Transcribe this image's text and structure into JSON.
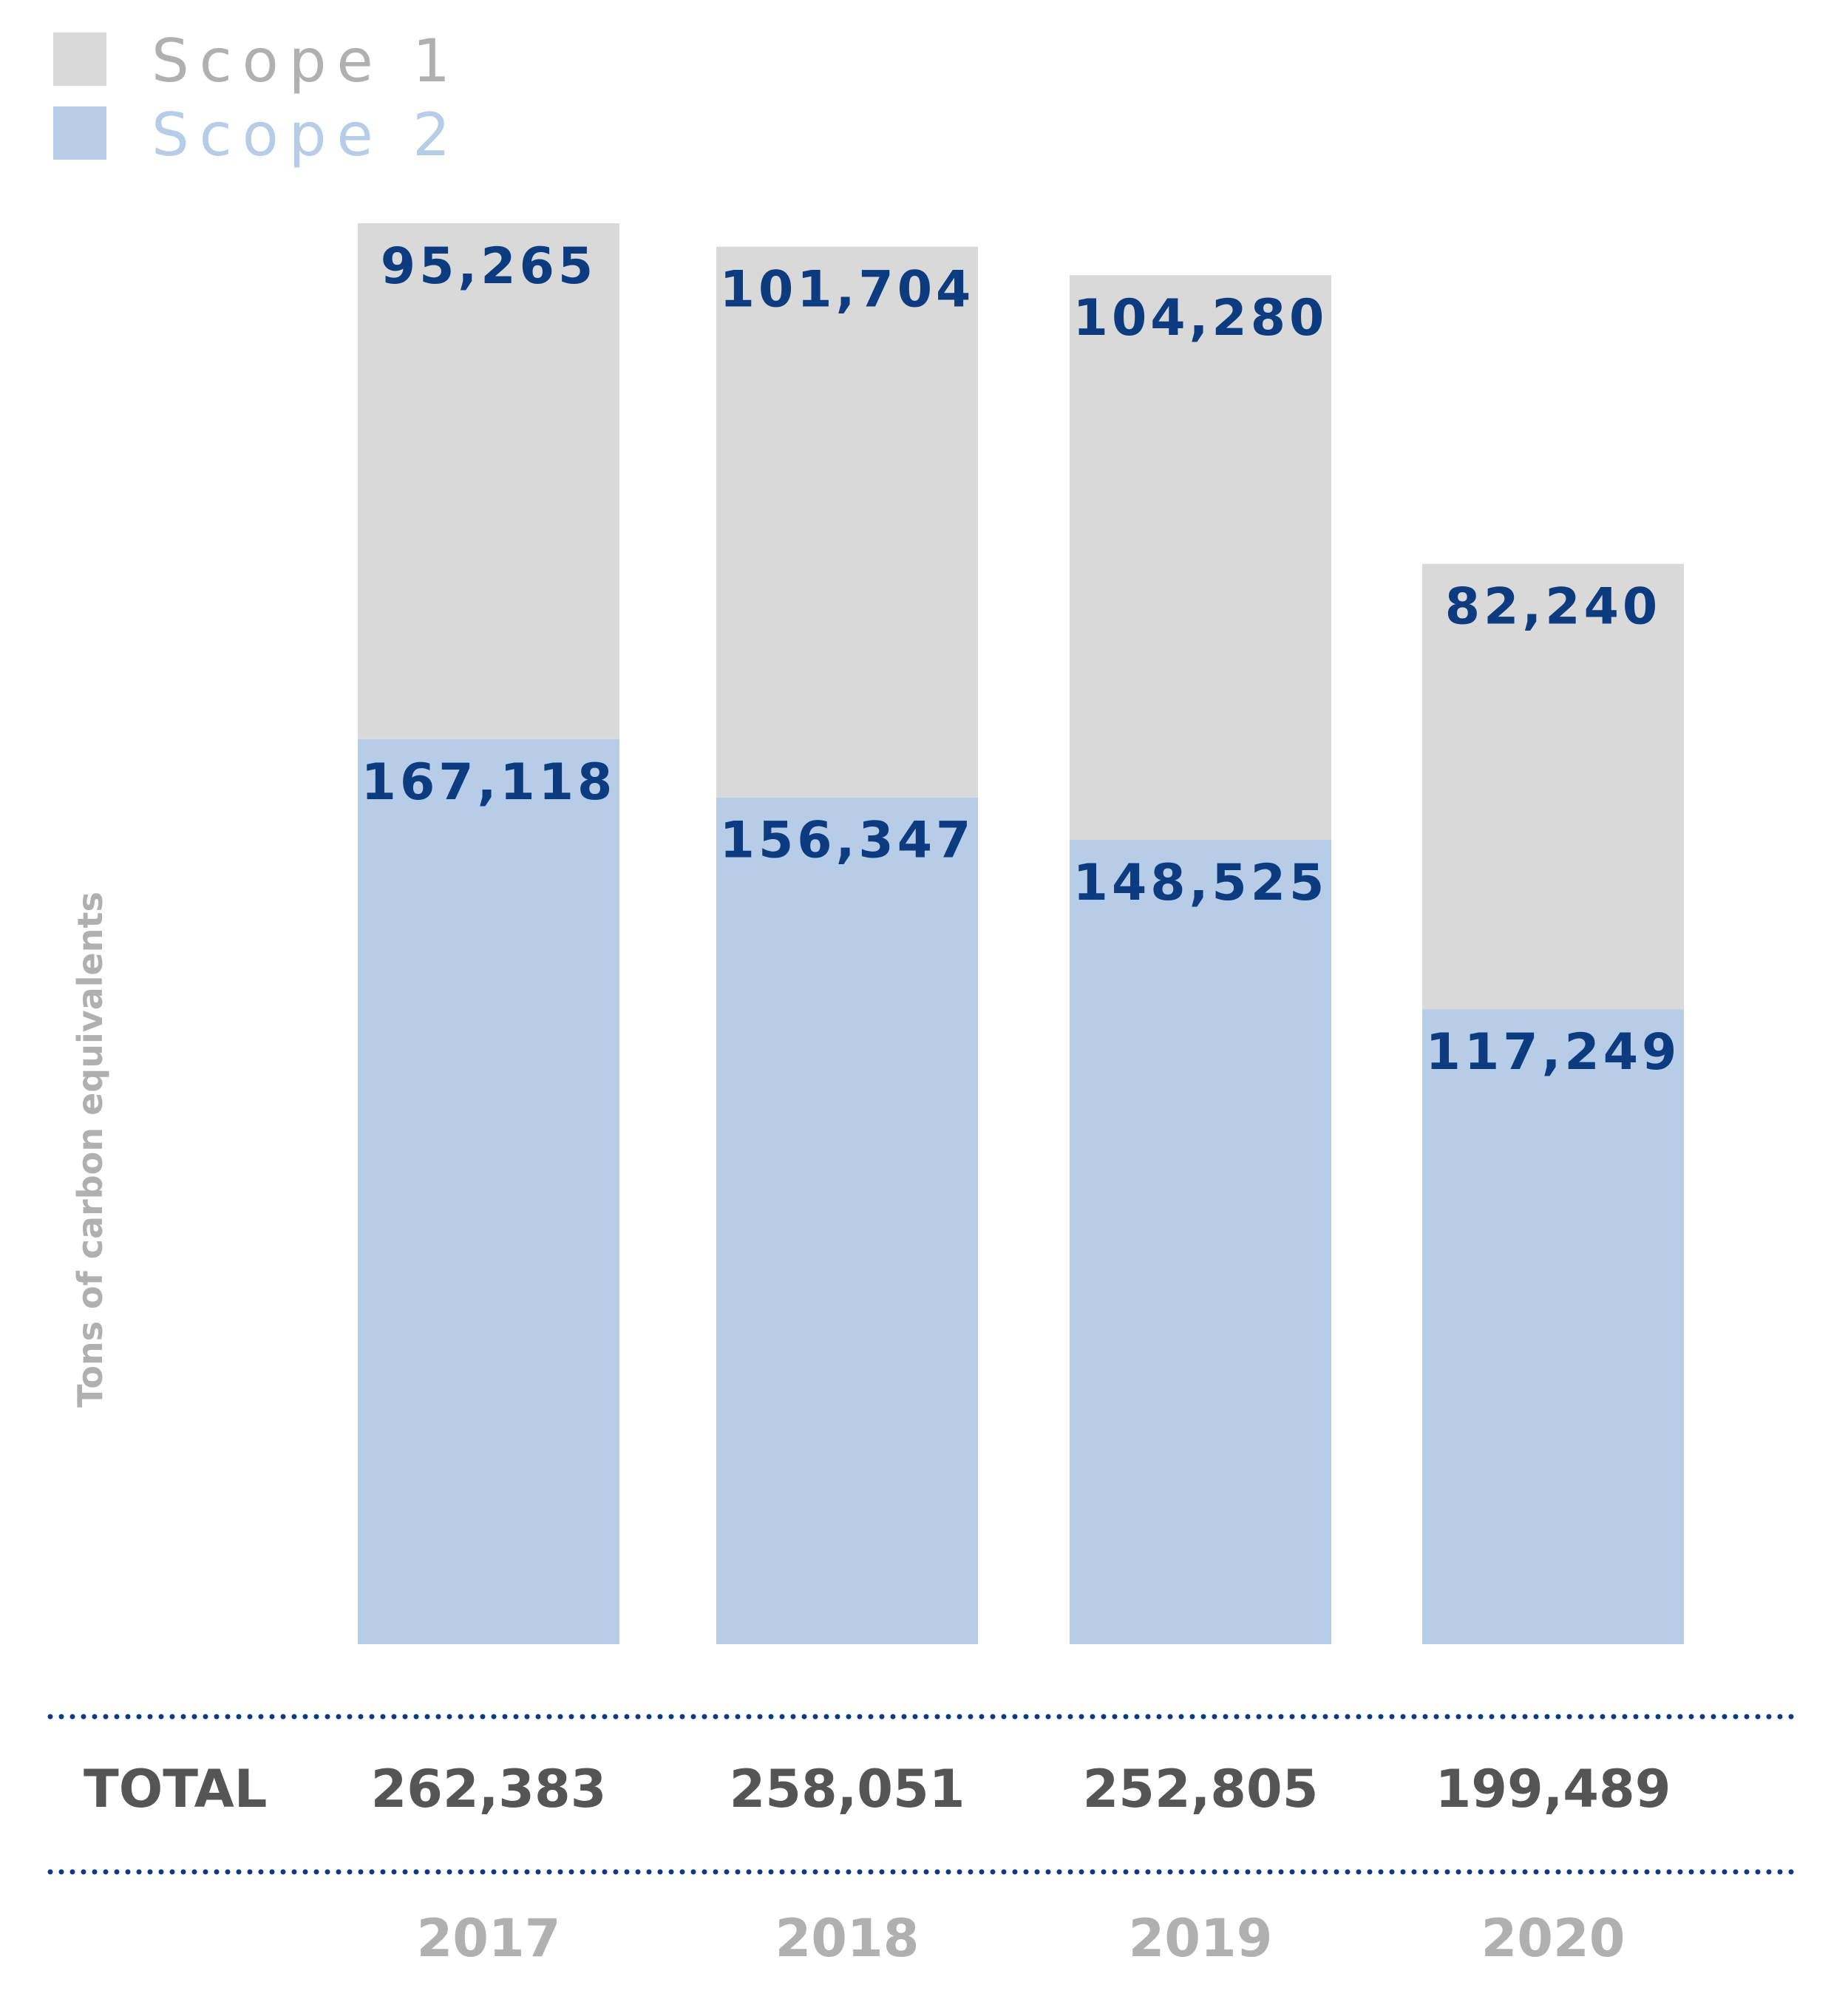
{
  "chart_data": {
    "type": "bar",
    "stacked": true,
    "categories": [
      "2017",
      "2018",
      "2019",
      "2020"
    ],
    "series": [
      {
        "name": "Scope 2",
        "values": [
          167118,
          156347,
          148525,
          117249
        ],
        "value_labels": [
          "167,118",
          "156,347",
          "148,525",
          "117,249"
        ],
        "color": "#b7cce7"
      },
      {
        "name": "Scope 1",
        "values": [
          95265,
          101704,
          104280,
          82240
        ],
        "value_labels": [
          "95,265",
          "101,704",
          "104,280",
          "82,240"
        ],
        "color": "#d9d9d9"
      }
    ],
    "legend": [
      {
        "name": "Scope 1",
        "color": "#d9d9d9",
        "text_color": "#b0b0b0"
      },
      {
        "name": "Scope 2",
        "color": "#b7cce7",
        "text_color": "#b7cce7"
      }
    ],
    "legend_position": "top-left",
    "ylabel": "Tons of carbon equivalents",
    "ylim": [
      0,
      262383
    ],
    "totals": {
      "label": "TOTAL",
      "values": [
        "262,383",
        "258,051",
        "252,805",
        "199,489"
      ]
    },
    "separator_color": "#0d3b80",
    "grid": false
  }
}
